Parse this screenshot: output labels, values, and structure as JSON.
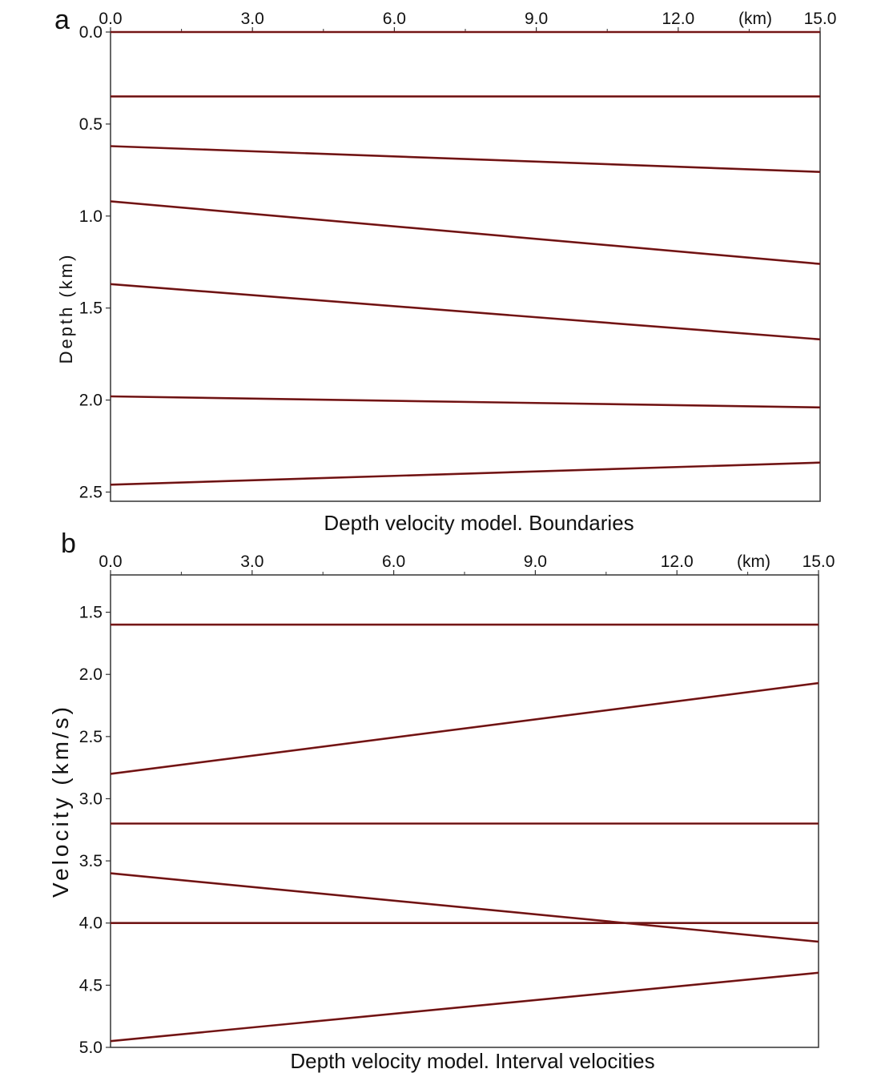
{
  "chart_data": [
    {
      "panel": "a",
      "type": "line",
      "title": "Depth velocity model. Boundaries",
      "xlabel_unit": "(km)",
      "ylabel": "Depth (km)",
      "xlim": [
        0,
        15
      ],
      "ylim": [
        0,
        2.55
      ],
      "xticks": [
        {
          "value": 0,
          "label": "0.0"
        },
        {
          "value": 3,
          "label": "3.0"
        },
        {
          "value": 6,
          "label": "6.0"
        },
        {
          "value": 9,
          "label": "9.0"
        },
        {
          "value": 12,
          "label": "12.0"
        },
        {
          "value": 15,
          "label": "15.0"
        }
      ],
      "yticks": [
        {
          "value": 0,
          "label": "0.0"
        },
        {
          "value": 0.5,
          "label": "0.5"
        },
        {
          "value": 1.0,
          "label": "1.0"
        },
        {
          "value": 1.5,
          "label": "1.5"
        },
        {
          "value": 2.0,
          "label": "2.0"
        },
        {
          "value": 2.5,
          "label": "2.5"
        }
      ],
      "x_axis_position": "top",
      "y_inverted": true,
      "line_color": "#8b1a1a",
      "series": [
        {
          "x": [
            0,
            15
          ],
          "y": [
            0.0,
            0.0
          ]
        },
        {
          "x": [
            0,
            15
          ],
          "y": [
            0.35,
            0.35
          ]
        },
        {
          "x": [
            0,
            15
          ],
          "y": [
            0.62,
            0.76
          ]
        },
        {
          "x": [
            0,
            15
          ],
          "y": [
            0.92,
            1.26
          ]
        },
        {
          "x": [
            0,
            15
          ],
          "y": [
            1.37,
            1.67
          ]
        },
        {
          "x": [
            0,
            15
          ],
          "y": [
            1.98,
            2.04
          ]
        },
        {
          "x": [
            0,
            15
          ],
          "y": [
            2.46,
            2.34
          ]
        }
      ]
    },
    {
      "panel": "b",
      "type": "line",
      "title": "Depth velocity model. Interval velocities",
      "xlabel_unit": "(km)",
      "ylabel": "Velocity (km/s)",
      "xlim": [
        0,
        15
      ],
      "ylim": [
        1.2,
        5.0
      ],
      "xticks": [
        {
          "value": 0,
          "label": "0.0"
        },
        {
          "value": 3,
          "label": "3.0"
        },
        {
          "value": 6,
          "label": "6.0"
        },
        {
          "value": 9,
          "label": "9.0"
        },
        {
          "value": 12,
          "label": "12.0"
        },
        {
          "value": 15,
          "label": "15.0"
        }
      ],
      "yticks": [
        {
          "value": 1.5,
          "label": "1.5"
        },
        {
          "value": 2.0,
          "label": "2.0"
        },
        {
          "value": 2.5,
          "label": "2.5"
        },
        {
          "value": 3.0,
          "label": "3.0"
        },
        {
          "value": 3.5,
          "label": "3.5"
        },
        {
          "value": 4.0,
          "label": "4.0"
        },
        {
          "value": 4.5,
          "label": "4.5"
        },
        {
          "value": 5.0,
          "label": "5.0"
        }
      ],
      "x_axis_position": "top",
      "y_inverted": true,
      "line_color": "#8b1a1a",
      "series": [
        {
          "x": [
            0,
            15
          ],
          "y": [
            1.6,
            1.6
          ]
        },
        {
          "x": [
            0,
            15
          ],
          "y": [
            2.8,
            2.07
          ]
        },
        {
          "x": [
            0,
            15
          ],
          "y": [
            3.2,
            3.2
          ]
        },
        {
          "x": [
            0,
            15
          ],
          "y": [
            3.6,
            4.15
          ]
        },
        {
          "x": [
            0,
            15
          ],
          "y": [
            4.0,
            4.0
          ]
        },
        {
          "x": [
            0,
            15
          ],
          "y": [
            4.95,
            4.4
          ]
        }
      ]
    }
  ]
}
